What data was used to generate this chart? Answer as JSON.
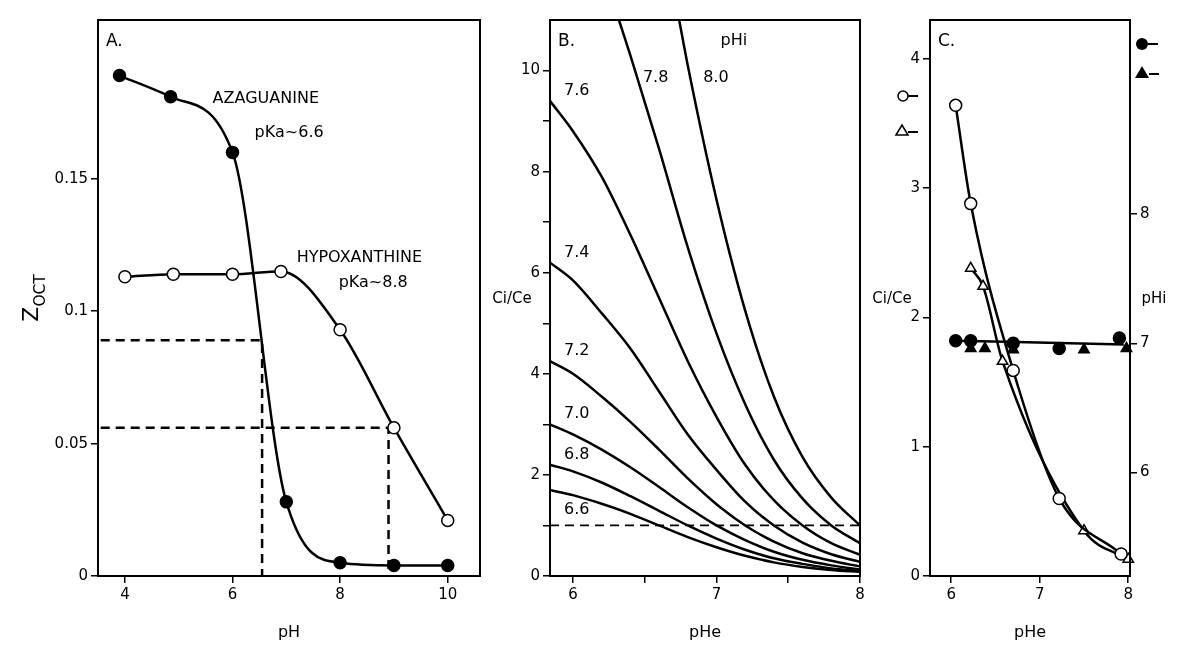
{
  "chart_data": [
    {
      "type": "line",
      "title": "A.",
      "xlabel": "pH",
      "ylabel": "Z$_{OCT}$",
      "xlim": [
        3.5,
        10.6
      ],
      "xticks": [
        4,
        6,
        8,
        10
      ],
      "ylim": [
        0,
        0.21
      ],
      "yticks": [
        0,
        0.05,
        0.1,
        0.15
      ],
      "grid": false,
      "legend": false,
      "marker": "circle",
      "annotations": [
        "AZAGUANINE",
        "pKa~6.6",
        "HYPOXANTHINE",
        "pKa~8.8"
      ],
      "series": [
        {
          "color": "#000000",
          "x": [
            3.9,
            4.85,
            6.0,
            7.0,
            8.0,
            9.0,
            10.0
          ],
          "values": [
            0.189,
            0.181,
            0.16,
            0.028,
            0.005,
            0.004,
            0.004
          ]
        },
        {
          "color": "#000000",
          "colors": [
            "#ffffff",
            "#ffffff",
            "#ffffff",
            "#ffffff",
            "#ffffff",
            "#ffffff",
            "#ffffff"
          ],
          "x": [
            4.0,
            4.9,
            6.0,
            6.9,
            8.0,
            9.0,
            10.0
          ],
          "values": [
            0.113,
            0.114,
            0.114,
            0.115,
            0.093,
            0.056,
            0.021
          ]
        },
        {
          "color": "#000000",
          "marker": "none",
          "line_style": "dashed",
          "x": [
            3.55,
            6.55,
            6.55
          ],
          "values": [
            0.089,
            0.089,
            0
          ]
        },
        {
          "color": "#000000",
          "marker": "none",
          "line_style": "dashed",
          "x": [
            3.55,
            8.9,
            8.9
          ],
          "values": [
            0.056,
            0.056,
            0
          ]
        }
      ]
    },
    {
      "type": "line",
      "title": "B.",
      "xlabel": "pHe",
      "ylabel": "Ci/Ce",
      "xlim": [
        5.84,
        8
      ],
      "xticks": [
        6,
        {
          "value": 6.5,
          "label": null
        },
        7,
        {
          "value": 7.5,
          "label": null
        },
        8
      ],
      "ylim": [
        0,
        11
      ],
      "yticks": [
        0,
        {
          "value": 1,
          "label": null
        },
        2,
        {
          "value": 3,
          "label": null
        },
        4,
        {
          "value": 5,
          "label": null
        },
        6,
        {
          "value": 7,
          "label": null
        },
        8,
        {
          "value": 9,
          "label": null
        },
        10
      ],
      "grid": false,
      "legend": false,
      "marker": "none",
      "annotations": [
        "pHi"
      ],
      "ref_lines": [
        {
          "axis": "y",
          "value": 1,
          "line_style": "dashed"
        }
      ],
      "series": [
        {
          "name": "6.6",
          "color": "#000000",
          "x": [
            5.84,
            6.0,
            6.2,
            6.4,
            6.6,
            6.8,
            7.0,
            7.2,
            7.4,
            7.6,
            7.8,
            8.0
          ],
          "values": [
            1.7,
            1.6,
            1.43,
            1.23,
            1.0,
            0.77,
            0.57,
            0.4,
            0.27,
            0.18,
            0.12,
            0.08
          ]
        },
        {
          "name": "6.8",
          "color": "#000000",
          "x": [
            5.84,
            6.0,
            6.2,
            6.4,
            6.6,
            6.8,
            7.0,
            7.2,
            7.4,
            7.6,
            7.8,
            8.0
          ],
          "values": [
            2.2,
            2.07,
            1.85,
            1.58,
            1.29,
            1.0,
            0.74,
            0.52,
            0.35,
            0.24,
            0.15,
            0.1
          ]
        },
        {
          "name": "7.0",
          "color": "#000000",
          "x": [
            5.84,
            6.0,
            6.2,
            6.4,
            6.6,
            6.8,
            7.0,
            7.2,
            7.4,
            7.6,
            7.8,
            8.0
          ],
          "values": [
            3.0,
            2.8,
            2.5,
            2.15,
            1.76,
            1.36,
            1.0,
            0.71,
            0.48,
            0.32,
            0.21,
            0.13
          ]
        },
        {
          "name": "7.2",
          "color": "#000000",
          "x": [
            5.84,
            6.0,
            6.2,
            6.4,
            6.6,
            6.8,
            7.0,
            7.2,
            7.4,
            7.6,
            7.8,
            8.0
          ],
          "values": [
            4.25,
            4.0,
            3.55,
            3.05,
            2.5,
            1.93,
            1.42,
            1.0,
            0.68,
            0.45,
            0.3,
            0.19
          ]
        },
        {
          "name": "7.4",
          "color": "#000000",
          "x": [
            5.84,
            6.0,
            6.2,
            6.4,
            6.6,
            6.8,
            7.0,
            7.2,
            7.4,
            7.6,
            7.8,
            8.0
          ],
          "values": [
            6.2,
            5.85,
            5.2,
            4.5,
            3.65,
            2.8,
            2.1,
            1.47,
            1.0,
            0.66,
            0.43,
            0.28
          ]
        },
        {
          "name": "7.6",
          "color": "#000000",
          "x": [
            5.84,
            6.0,
            6.2,
            6.4,
            6.6,
            6.8,
            7.0,
            7.2,
            7.4,
            7.6,
            7.8,
            8.0
          ],
          "values": [
            9.4,
            8.8,
            7.9,
            6.75,
            5.5,
            4.25,
            3.15,
            2.2,
            1.5,
            1.0,
            0.65,
            0.42
          ]
        },
        {
          "name": "7.8",
          "color": "#000000",
          "x": [
            6.32,
            6.4,
            6.6,
            6.8,
            7.0,
            7.2,
            7.4,
            7.6,
            7.8,
            8.0
          ],
          "values": [
            11.0,
            10.3,
            8.45,
            6.5,
            4.8,
            3.4,
            2.3,
            1.53,
            1.0,
            0.65
          ]
        },
        {
          "name": "8.0",
          "color": "#000000",
          "x": [
            6.74,
            6.8,
            7.0,
            7.2,
            7.4,
            7.6,
            7.8,
            8.0
          ],
          "values": [
            11.0,
            10.1,
            7.45,
            5.25,
            3.55,
            2.35,
            1.55,
            1.0
          ]
        }
      ]
    },
    {
      "type": "line",
      "title": "C.",
      "xlabel": "pHe",
      "ylabel": "Ci/Ce",
      "y2label": "pHi",
      "xlim": [
        5.76,
        8.02
      ],
      "xticks": [
        6,
        7,
        8
      ],
      "ylim": [
        0,
        4.3
      ],
      "yticks": [
        0,
        1,
        2,
        3,
        4
      ],
      "y2lim": [
        5.2,
        9.5
      ],
      "y2ticks": [
        6,
        7,
        8
      ],
      "grid": false,
      "legend": false,
      "series": [
        {
          "color": "#000000",
          "marker": "circle",
          "colors": [
            "#ffffff",
            "#ffffff",
            "#ffffff",
            "#ffffff",
            "#ffffff"
          ],
          "x": [
            6.05,
            6.22,
            6.7,
            7.22,
            7.92
          ],
          "values": [
            3.64,
            2.88,
            1.59,
            0.6,
            0.17
          ]
        },
        {
          "color": "#000000",
          "marker": "triangle",
          "colors": [
            "#ffffff",
            "#ffffff",
            "#ffffff",
            "#ffffff",
            "#ffffff"
          ],
          "x": [
            6.22,
            6.36,
            6.58,
            7.5,
            8.0
          ],
          "values": [
            2.38,
            2.24,
            1.66,
            0.35,
            0.13
          ]
        },
        {
          "type": "scatter",
          "axis": "y2",
          "marker": "circle",
          "color": "#000000",
          "x": [
            6.05,
            6.22,
            6.7,
            7.22,
            7.9
          ],
          "values": [
            7.02,
            7.02,
            7.0,
            6.96,
            7.04
          ]
        },
        {
          "type": "scatter",
          "axis": "y2",
          "marker": "triangle",
          "color": "#000000",
          "x": [
            6.22,
            6.38,
            6.7,
            7.5,
            7.98
          ],
          "values": [
            6.96,
            6.96,
            6.95,
            6.95,
            6.96
          ]
        },
        {
          "axis": "y2",
          "marker": "none",
          "color": "#000000",
          "x": [
            6.05,
            7.95
          ],
          "values": [
            7.02,
            6.99
          ]
        }
      ]
    }
  ]
}
